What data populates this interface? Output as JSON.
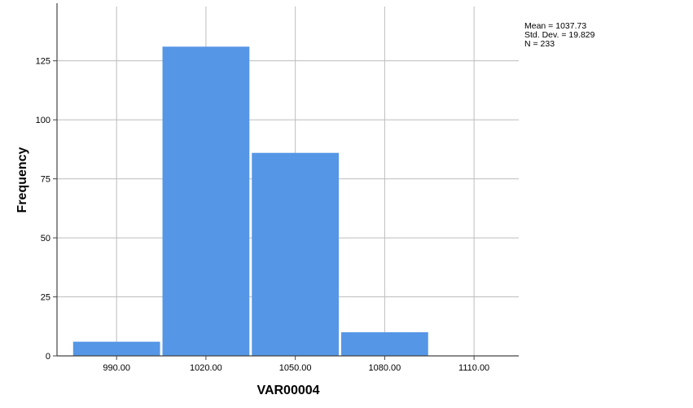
{
  "chart_data": {
    "type": "bar",
    "title": "",
    "xlabel": "VAR00004",
    "ylabel": "Frequency",
    "x_tick_labels": [
      "990.00",
      "1020.00",
      "1050.00",
      "1080.00",
      "1110.00"
    ],
    "x_ticks": [
      990,
      1020,
      1050,
      1080,
      1110
    ],
    "xlim": [
      970,
      1125
    ],
    "y_ticks": [
      0,
      25,
      50,
      75,
      100,
      125
    ],
    "ylim": [
      0,
      148
    ],
    "bins": [
      {
        "from": 975,
        "to": 1005,
        "value": 6
      },
      {
        "from": 1005,
        "to": 1035,
        "value": 131
      },
      {
        "from": 1035,
        "to": 1065,
        "value": 86
      },
      {
        "from": 1065,
        "to": 1095,
        "value": 10
      }
    ],
    "grid": true,
    "bar_color": "#5596e6",
    "grid_color": "#bdbdbd",
    "stats": {
      "mean": "Mean = 1037.73",
      "std_dev": "Std. Dev. = 19.829",
      "n": "N = 233"
    }
  }
}
